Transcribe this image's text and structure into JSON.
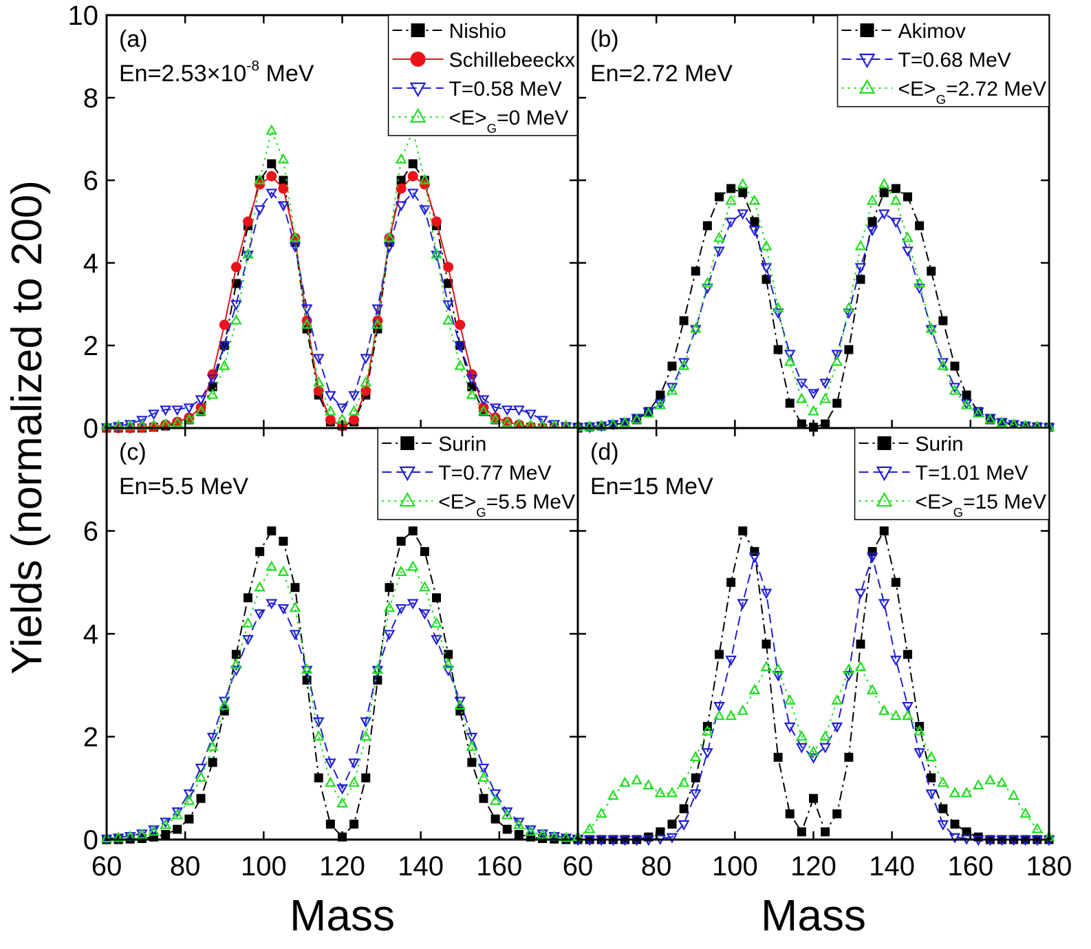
{
  "chart_data": [
    {
      "type": "line",
      "panel_label": "(a)",
      "annotations": [
        [
          "En=2.53×10",
          "-8",
          " MeV"
        ]
      ],
      "ylabel": "Yields (normalized to 200)",
      "xlim": [
        60,
        180
      ],
      "ylim": [
        0,
        10
      ],
      "yticks": [
        0,
        2,
        4,
        6,
        8,
        10
      ],
      "legend": "upper right",
      "x": [
        60,
        63,
        66,
        69,
        72,
        75,
        78,
        81,
        84,
        87,
        90,
        93,
        96,
        99,
        102,
        105,
        108,
        111,
        114,
        117,
        120,
        123,
        126,
        129,
        132,
        135,
        138,
        141,
        144,
        147,
        150,
        153,
        156,
        159,
        162,
        165,
        168,
        171,
        174,
        177,
        180
      ],
      "series": [
        {
          "name": "Nishio",
          "color": "#000000",
          "marker": "square",
          "line_style": "dashdot",
          "values": [
            0,
            0,
            0,
            0,
            0.02,
            0.05,
            0.1,
            0.2,
            0.4,
            1.0,
            2.0,
            3.5,
            4.9,
            6.0,
            6.4,
            6.0,
            4.5,
            2.4,
            0.8,
            0.15,
            0.05,
            0.15,
            0.8,
            2.4,
            4.5,
            6.0,
            6.4,
            6.0,
            4.9,
            3.5,
            2.0,
            1.0,
            0.4,
            0.2,
            0.1,
            0.05,
            0.02,
            0,
            0,
            0,
            0
          ]
        },
        {
          "name": "Schillebeeckx",
          "color": "#e8141a",
          "marker": "circle",
          "line_style": "solid",
          "values": [
            0,
            0,
            0,
            0.01,
            0.03,
            0.08,
            0.15,
            0.25,
            0.5,
            1.3,
            2.5,
            3.9,
            5.0,
            5.9,
            6.1,
            5.8,
            4.6,
            2.6,
            0.9,
            0.2,
            0.05,
            0.2,
            0.9,
            2.6,
            4.6,
            5.8,
            6.1,
            5.9,
            5.0,
            3.9,
            2.5,
            1.3,
            0.5,
            0.25,
            0.15,
            0.08,
            0.03,
            0.01,
            0,
            0,
            0
          ]
        },
        {
          "name": "T=0.58 MeV",
          "color": "#1f1fd6",
          "marker": "triangle-down",
          "line_style": "dashed",
          "values": [
            0.02,
            0.05,
            0.1,
            0.2,
            0.35,
            0.45,
            0.45,
            0.5,
            0.7,
            1.2,
            2.0,
            3.0,
            4.2,
            5.3,
            5.7,
            5.4,
            4.4,
            2.9,
            1.7,
            0.8,
            0.5,
            0.8,
            1.7,
            2.9,
            4.4,
            5.4,
            5.7,
            5.3,
            4.2,
            3.0,
            2.0,
            1.2,
            0.7,
            0.5,
            0.45,
            0.45,
            0.35,
            0.2,
            0.1,
            0.05,
            0.02
          ]
        },
        {
          "name": [
            "<E>",
            "G",
            "=0 MeV"
          ],
          "color": "#22dd22",
          "marker": "triangle-up",
          "line_style": "dotted",
          "values": [
            0.05,
            0.05,
            0.05,
            0.05,
            0.06,
            0.08,
            0.12,
            0.2,
            0.4,
            0.8,
            1.5,
            2.6,
            4.2,
            6.0,
            7.2,
            6.5,
            4.6,
            2.5,
            1.1,
            0.4,
            0.2,
            0.4,
            1.1,
            2.5,
            4.6,
            6.5,
            7.2,
            6.0,
            4.2,
            2.6,
            1.5,
            0.8,
            0.4,
            0.2,
            0.12,
            0.08,
            0.06,
            0.05,
            0.05,
            0.05,
            0.05
          ]
        }
      ]
    },
    {
      "type": "line",
      "panel_label": "(b)",
      "annotations": [
        "En=2.72 MeV"
      ],
      "xlim": [
        60,
        180
      ],
      "ylim": [
        0,
        10
      ],
      "legend": "upper right",
      "x": [
        60,
        63,
        66,
        69,
        72,
        75,
        78,
        81,
        84,
        87,
        90,
        93,
        96,
        99,
        102,
        105,
        108,
        111,
        114,
        117,
        120,
        123,
        126,
        129,
        132,
        135,
        138,
        141,
        144,
        147,
        150,
        153,
        156,
        159,
        162,
        165,
        168,
        171,
        174,
        177,
        180
      ],
      "series": [
        {
          "name": "Akimov",
          "color": "#000000",
          "marker": "square",
          "line_style": "dashdot",
          "values": [
            0.02,
            0.03,
            0.05,
            0.08,
            0.12,
            0.2,
            0.4,
            0.8,
            1.5,
            2.6,
            3.8,
            4.9,
            5.6,
            5.8,
            5.7,
            5.0,
            3.6,
            1.9,
            0.6,
            0.1,
            0.02,
            0.1,
            0.6,
            1.9,
            3.6,
            5.0,
            5.7,
            5.8,
            5.6,
            4.9,
            3.8,
            2.6,
            1.5,
            0.8,
            0.4,
            0.2,
            0.12,
            0.08,
            0.05,
            0.03,
            0.02
          ]
        },
        {
          "name": "T=0.68 MeV",
          "color": "#1f1fd6",
          "marker": "triangle-down",
          "line_style": "dashed",
          "values": [
            0.02,
            0.03,
            0.06,
            0.1,
            0.15,
            0.25,
            0.4,
            0.6,
            1.0,
            1.6,
            2.4,
            3.4,
            4.3,
            5.0,
            5.2,
            4.8,
            3.9,
            2.8,
            1.8,
            1.1,
            0.85,
            1.1,
            1.8,
            2.8,
            3.9,
            4.8,
            5.2,
            5.0,
            4.3,
            3.4,
            2.4,
            1.6,
            1.0,
            0.6,
            0.4,
            0.25,
            0.15,
            0.1,
            0.06,
            0.03,
            0.02
          ]
        },
        {
          "name": [
            "<E>",
            "G",
            "=2.72 MeV"
          ],
          "color": "#22dd22",
          "marker": "triangle-up",
          "line_style": "dotted",
          "values": [
            0.02,
            0.03,
            0.05,
            0.08,
            0.12,
            0.2,
            0.35,
            0.55,
            0.9,
            1.5,
            2.4,
            3.5,
            4.6,
            5.5,
            5.9,
            5.5,
            4.4,
            2.9,
            1.6,
            0.7,
            0.4,
            0.7,
            1.6,
            2.9,
            4.4,
            5.5,
            5.9,
            5.5,
            4.6,
            3.5,
            2.4,
            1.5,
            0.9,
            0.55,
            0.35,
            0.2,
            0.12,
            0.08,
            0.05,
            0.03,
            0.02
          ]
        }
      ]
    },
    {
      "type": "line",
      "panel_label": "(c)",
      "annotations": [
        "En=5.5 MeV"
      ],
      "xlabel": "Mass",
      "xlim": [
        60,
        180
      ],
      "ylim": [
        0,
        8
      ],
      "xticks": [
        60,
        80,
        100,
        120,
        140,
        160
      ],
      "yticks": [
        0,
        2,
        4,
        6
      ],
      "legend": "upper right",
      "x": [
        60,
        63,
        66,
        69,
        72,
        75,
        78,
        81,
        84,
        87,
        90,
        93,
        96,
        99,
        102,
        105,
        108,
        111,
        114,
        117,
        120,
        123,
        126,
        129,
        132,
        135,
        138,
        141,
        144,
        147,
        150,
        153,
        156,
        159,
        162,
        165,
        168,
        171,
        174,
        177,
        180
      ],
      "series": [
        {
          "name": "Surin",
          "color": "#000000",
          "marker": "square",
          "line_style": "dashdot",
          "values": [
            0,
            0,
            0.01,
            0.02,
            0.05,
            0.1,
            0.2,
            0.4,
            0.8,
            1.5,
            2.5,
            3.6,
            4.7,
            5.6,
            6.0,
            5.8,
            4.9,
            3.1,
            1.2,
            0.3,
            0.05,
            0.3,
            1.2,
            3.1,
            4.9,
            5.8,
            6.0,
            5.6,
            4.7,
            3.6,
            2.5,
            1.5,
            0.8,
            0.4,
            0.2,
            0.1,
            0.05,
            0.02,
            0.01,
            0,
            0
          ]
        },
        {
          "name": "T=0.77 MeV",
          "color": "#1f1fd6",
          "marker": "triangle-down",
          "line_style": "dashed",
          "values": [
            0.02,
            0.04,
            0.07,
            0.12,
            0.2,
            0.35,
            0.55,
            0.9,
            1.4,
            2.0,
            2.7,
            3.3,
            3.9,
            4.4,
            4.6,
            4.5,
            4.0,
            3.3,
            2.3,
            1.5,
            1.0,
            1.5,
            2.3,
            3.3,
            4.0,
            4.5,
            4.6,
            4.4,
            3.9,
            3.3,
            2.7,
            2.0,
            1.4,
            0.9,
            0.55,
            0.35,
            0.2,
            0.12,
            0.07,
            0.04,
            0.02
          ]
        },
        {
          "name": [
            "<E>",
            "G",
            "=5.5 MeV"
          ],
          "color": "#22dd22",
          "marker": "triangle-up",
          "line_style": "dotted",
          "values": [
            0.02,
            0.03,
            0.05,
            0.09,
            0.15,
            0.28,
            0.47,
            0.75,
            1.2,
            1.8,
            2.6,
            3.4,
            4.2,
            4.9,
            5.3,
            5.2,
            4.5,
            3.3,
            2.0,
            1.1,
            0.7,
            1.1,
            2.0,
            3.3,
            4.5,
            5.2,
            5.3,
            4.9,
            4.2,
            3.4,
            2.6,
            1.8,
            1.2,
            0.75,
            0.47,
            0.28,
            0.15,
            0.09,
            0.05,
            0.03,
            0.02
          ]
        }
      ]
    },
    {
      "type": "line",
      "panel_label": "(d)",
      "annotations": [
        "En=15 MeV"
      ],
      "xlabel": "Mass",
      "xlim": [
        60,
        180
      ],
      "ylim": [
        0,
        8
      ],
      "xticks": [
        60,
        80,
        100,
        120,
        140,
        160,
        180
      ],
      "legend": "upper right",
      "x": [
        60,
        63,
        66,
        69,
        72,
        75,
        78,
        81,
        84,
        87,
        90,
        93,
        96,
        99,
        102,
        105,
        108,
        111,
        114,
        117,
        120,
        123,
        126,
        129,
        132,
        135,
        138,
        141,
        144,
        147,
        150,
        153,
        156,
        159,
        162,
        165,
        168,
        171,
        174,
        177,
        180
      ],
      "series": [
        {
          "name": "Surin",
          "color": "#000000",
          "marker": "square",
          "line_style": "dashdot",
          "values": [
            0,
            0,
            0,
            0,
            0,
            0,
            0.05,
            0.15,
            0.3,
            0.6,
            1.2,
            2.2,
            3.6,
            5.0,
            6.0,
            5.6,
            3.8,
            1.6,
            0.5,
            0.15,
            0.8,
            0.15,
            0.5,
            1.6,
            3.8,
            5.6,
            6.0,
            5.0,
            3.6,
            2.2,
            1.2,
            0.6,
            0.3,
            0.15,
            0.05,
            0,
            0,
            0,
            0,
            0,
            0
          ]
        },
        {
          "name": "T=1.01 MeV",
          "color": "#1f1fd6",
          "marker": "triangle-down",
          "line_style": "dashed",
          "values": [
            0,
            0,
            0,
            0,
            0,
            0,
            0,
            0.02,
            0.05,
            0.3,
            0.9,
            1.7,
            2.6,
            3.5,
            4.6,
            5.5,
            4.8,
            3.2,
            2.2,
            1.8,
            1.6,
            1.8,
            2.2,
            3.2,
            4.8,
            5.5,
            4.6,
            3.5,
            2.6,
            1.7,
            0.9,
            0.3,
            0.05,
            0.02,
            0,
            0,
            0,
            0,
            0,
            0,
            0
          ]
        },
        {
          "name": [
            "<E>",
            "G",
            "=15 MeV"
          ],
          "color": "#22dd22",
          "marker": "triangle-up",
          "line_style": "dotted",
          "values": [
            0.05,
            0.2,
            0.5,
            0.85,
            1.1,
            1.15,
            1.05,
            0.9,
            0.9,
            1.1,
            1.6,
            2.1,
            2.4,
            2.4,
            2.5,
            2.9,
            3.35,
            3.3,
            2.7,
            2.0,
            1.7,
            2.0,
            2.7,
            3.3,
            3.35,
            2.9,
            2.5,
            2.4,
            2.4,
            2.1,
            1.6,
            1.1,
            0.9,
            0.9,
            1.05,
            1.15,
            1.1,
            0.85,
            0.5,
            0.2,
            0.05
          ]
        }
      ]
    }
  ]
}
